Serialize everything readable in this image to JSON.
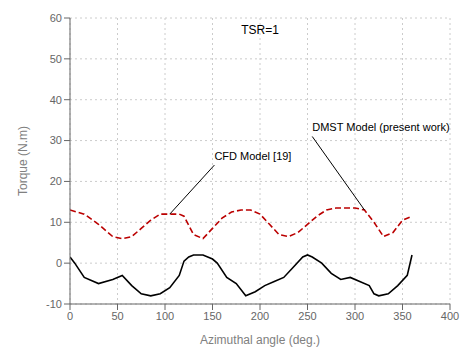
{
  "chart_data": {
    "type": "line",
    "title": "TSR=1",
    "x_label": "Azimuthal angle (deg.)",
    "y_label": "Torque (N.m)",
    "xlim": [
      0,
      400
    ],
    "ylim": [
      -10,
      60
    ],
    "xticks": [
      0,
      50,
      100,
      150,
      200,
      250,
      300,
      350,
      400
    ],
    "yticks": [
      -10,
      0,
      10,
      20,
      30,
      40,
      50,
      60
    ],
    "grid": true,
    "series": [
      {
        "color": "#bb0000",
        "line_style": "dashed",
        "x": [
          0,
          15,
          30,
          45,
          55,
          65,
          75,
          85,
          95,
          105,
          115,
          120,
          130,
          140,
          150,
          160,
          170,
          180,
          190,
          200,
          210,
          220,
          230,
          240,
          250,
          260,
          270,
          280,
          290,
          300,
          310,
          320,
          330,
          340,
          350,
          360
        ],
        "values": [
          13.0,
          12.0,
          9.5,
          6.5,
          6.0,
          6.5,
          8.5,
          10.5,
          12.0,
          12.0,
          12.0,
          11.5,
          7.0,
          6.0,
          8.5,
          11.0,
          12.5,
          13.0,
          13.0,
          12.0,
          9.5,
          7.0,
          6.5,
          7.5,
          9.5,
          11.5,
          13.0,
          13.5,
          13.5,
          13.5,
          13.0,
          10.0,
          6.5,
          7.5,
          10.5,
          11.5
        ]
      },
      {
        "color": "#000000",
        "line_style": "solid",
        "x": [
          0,
          5,
          15,
          30,
          45,
          55,
          65,
          75,
          85,
          95,
          105,
          115,
          120,
          125,
          130,
          140,
          150,
          155,
          165,
          175,
          185,
          195,
          205,
          215,
          225,
          235,
          245,
          250,
          255,
          265,
          275,
          285,
          295,
          305,
          315,
          320,
          325,
          335,
          345,
          355,
          360
        ],
        "values": [
          1.5,
          0.0,
          -3.5,
          -5.0,
          -4.0,
          -3.0,
          -5.5,
          -7.5,
          -8.0,
          -7.5,
          -6.0,
          -3.0,
          0.5,
          1.5,
          2.0,
          2.0,
          1.0,
          0.0,
          -3.5,
          -5.0,
          -8.0,
          -7.0,
          -5.5,
          -4.5,
          -3.5,
          -1.0,
          1.5,
          2.0,
          1.5,
          0.0,
          -2.5,
          -4.0,
          -3.5,
          -4.5,
          -5.5,
          -7.5,
          -8.0,
          -7.5,
          -5.5,
          -3.0,
          2.0
        ]
      }
    ],
    "annotations": [
      {
        "text": "DMST Model (present work)",
        "xytext": [
          255,
          31
        ],
        "xy": [
          310,
          13
        ]
      },
      {
        "text": "CFD Model [19]",
        "xytext": [
          152,
          24
        ],
        "xy": [
          105,
          12
        ]
      }
    ]
  }
}
